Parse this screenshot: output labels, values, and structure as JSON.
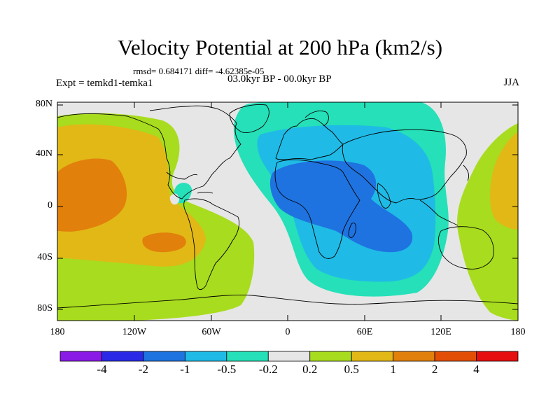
{
  "header": {
    "title": "Velocity Potential at 200 hPa (km2/s)",
    "stats": "rmsd= 0.684171 diff= -4.62385e-05",
    "expt": "Expt = temkd1-temka1",
    "period": "03.0kyr BP - 00.0kyr BP",
    "season": "JJA"
  },
  "axes": {
    "lat_labels": [
      "80N",
      "40N",
      "0",
      "40S",
      "80S"
    ],
    "lon_labels": [
      "180",
      "120W",
      "60W",
      "0",
      "60E",
      "120E",
      "180"
    ]
  },
  "colorbar": {
    "colors": [
      "#8a1be6",
      "#2a2ae6",
      "#1e73e0",
      "#1fbbe6",
      "#25e0b8",
      "#e6e6e6",
      "#a8dc1e",
      "#e2b816",
      "#e2800c",
      "#e24e06",
      "#e60e0e"
    ],
    "labels": [
      "-4",
      "-2",
      "-1",
      "-0.5",
      "-0.2",
      "0.2",
      "0.5",
      "1",
      "2",
      "4"
    ]
  },
  "colors": {
    "neutral": "#e6e6e6",
    "teal": "#25e0b8",
    "cyan": "#1fbbe6",
    "blue": "#1e73e0",
    "green": "#a8dc1e",
    "yellow": "#e2b816",
    "orange": "#e2800c"
  }
}
